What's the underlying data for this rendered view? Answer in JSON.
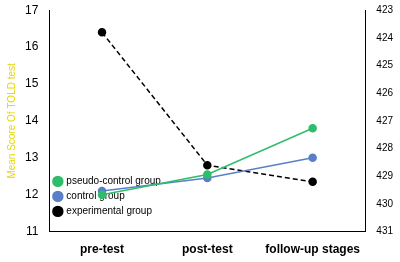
{
  "chart_data": {
    "type": "line",
    "y_label": "Mean Score Of TOLD test",
    "categories": [
      "pre-test",
      "post-test",
      "follow-up stages"
    ],
    "series": [
      {
        "name": "pseudo-control group",
        "color": "#2ebd6b",
        "values": [
          12.0,
          12.55,
          13.8
        ],
        "marker": "circle",
        "line_style": "solid"
      },
      {
        "name": "control group",
        "color": "#5b7fc7",
        "values": [
          12.1,
          12.45,
          13.0
        ],
        "marker": "circle",
        "line_style": "solid"
      },
      {
        "name": "experimental group",
        "color": "#000000",
        "values": [
          423.8,
          428.6,
          429.2
        ],
        "marker": "circle",
        "line_style": "dashed",
        "axis": "y2"
      }
    ],
    "ylim": [
      11,
      17
    ],
    "yticks": [
      11,
      12,
      13,
      14,
      15,
      16,
      17
    ],
    "y2lim": [
      431,
      423
    ],
    "y2ticks": [
      423,
      424,
      425,
      426,
      427,
      428,
      429,
      430,
      431
    ],
    "legend": "upper right",
    "grid": false
  }
}
